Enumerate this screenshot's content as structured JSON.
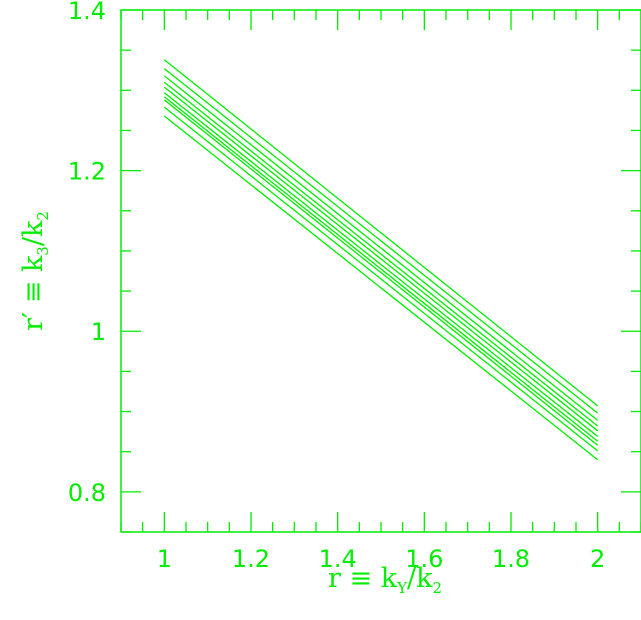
{
  "chart_data": {
    "type": "line",
    "color": "#00ee00",
    "xlim": [
      0.9,
      2.1
    ],
    "ylim": [
      0.75,
      1.4
    ],
    "x_ticks": [
      1,
      1.2,
      1.4,
      1.6,
      1.8,
      2
    ],
    "x_tick_labels": [
      "1",
      "1.2",
      "1.4",
      "1.6",
      "1.8",
      "2"
    ],
    "y_ticks": [
      0.8,
      1,
      1.2,
      1.4
    ],
    "y_tick_labels": [
      "0.8",
      "1",
      "1.2",
      "1.4"
    ],
    "x_minor_step": 0.05,
    "y_minor_step": 0.05,
    "xlabel": {
      "main": "r ≡ k",
      "sub": "Y",
      "mid": "/k",
      "sub2": "2"
    },
    "ylabel": {
      "main": "r′ ≡ k",
      "sub": "3",
      "mid": "/k",
      "sub2": "2"
    },
    "grid": false,
    "series": [
      {
        "x": [
          1,
          2
        ],
        "y": [
          1.338,
          0.907
        ]
      },
      {
        "x": [
          1,
          2
        ],
        "y": [
          1.327,
          0.898
        ]
      },
      {
        "x": [
          1,
          2
        ],
        "y": [
          1.318,
          0.889
        ]
      },
      {
        "x": [
          1,
          2
        ],
        "y": [
          1.31,
          0.882
        ]
      },
      {
        "x": [
          1,
          2
        ],
        "y": [
          1.304,
          0.876
        ]
      },
      {
        "x": [
          1,
          2
        ],
        "y": [
          1.297,
          0.869
        ]
      },
      {
        "x": [
          1,
          2
        ],
        "y": [
          1.292,
          0.863
        ]
      },
      {
        "x": [
          1,
          2
        ],
        "y": [
          1.288,
          0.858
        ]
      },
      {
        "x": [
          1,
          2
        ],
        "y": [
          1.279,
          0.851
        ]
      },
      {
        "x": [
          1,
          2
        ],
        "y": [
          1.268,
          0.84
        ]
      }
    ]
  }
}
